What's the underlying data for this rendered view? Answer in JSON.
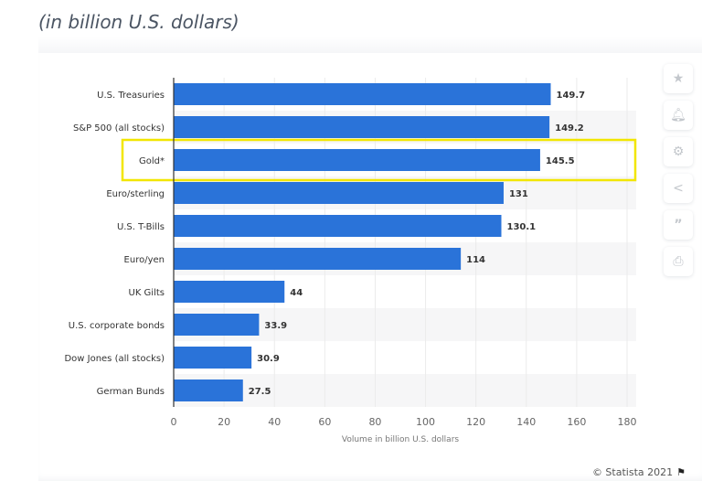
{
  "subtitle": "(in billion U.S. dollars)",
  "chart_data": {
    "type": "bar",
    "orientation": "horizontal",
    "categories": [
      "U.S. Treasuries",
      "S&P 500 (all stocks)",
      "Gold*",
      "Euro/sterling",
      "U.S. T-Bills",
      "Euro/yen",
      "UK Gilts",
      "U.S. corporate bonds",
      "Dow Jones (all stocks)",
      "German Bunds"
    ],
    "values": [
      149.7,
      149.2,
      145.5,
      131,
      130.1,
      114,
      44,
      33.9,
      30.9,
      27.5
    ],
    "value_labels": [
      "149.7",
      "149.2",
      "145.5",
      "131",
      "130.1",
      "114",
      "44",
      "33.9",
      "30.9",
      "27.5"
    ],
    "highlighted": "Gold*",
    "xlabel": "Volume in billion U.S. dollars",
    "xlim": [
      0,
      180
    ],
    "xticks": [
      "0",
      "20",
      "40",
      "60",
      "80",
      "100",
      "120",
      "140",
      "160",
      "180"
    ],
    "grid": true,
    "bar_color": "#2a73d9",
    "highlight_color": "#f2e600"
  },
  "toolbar": [
    "star-icon",
    "bell-icon",
    "gear-icon",
    "share-icon",
    "quote-icon",
    "print-icon"
  ],
  "credit": "© Statista 2021"
}
